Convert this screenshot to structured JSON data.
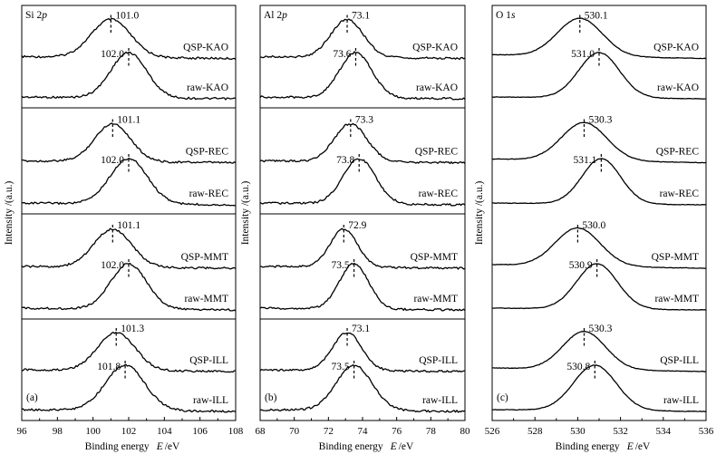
{
  "chart_data": [
    {
      "type": "line",
      "panel_label": "(a)",
      "title_element": "Si 2",
      "title_orbital": "p",
      "xlabel": "Binding energy",
      "xlabel_symbol": "E",
      "xlabel_unit": "/eV",
      "ylabel": "Intensity /(a.u.)",
      "xlim": [
        96,
        108
      ],
      "xticks": [
        "96",
        "98",
        "100",
        "102",
        "104",
        "106",
        "108"
      ],
      "grid": false,
      "series": [
        {
          "name": "QSP-KAO",
          "peak": 101.0,
          "peak_label": "101.0",
          "width": 1.1
        },
        {
          "name": "raw-KAO",
          "peak": 102.0,
          "peak_label": "102.0",
          "width": 1.0
        },
        {
          "name": "QSP-REC",
          "peak": 101.1,
          "peak_label": "101.1",
          "width": 1.0
        },
        {
          "name": "raw-REC",
          "peak": 102.0,
          "peak_label": "102.0",
          "width": 1.05
        },
        {
          "name": "QSP-MMT",
          "peak": 101.1,
          "peak_label": "101.1",
          "width": 1.05
        },
        {
          "name": "raw-MMT",
          "peak": 102.0,
          "peak_label": "102.0",
          "width": 1.0
        },
        {
          "name": "QSP-ILL",
          "peak": 101.3,
          "peak_label": "101.3",
          "width": 1.05
        },
        {
          "name": "raw-ILL",
          "peak": 101.8,
          "peak_label": "101.8",
          "width": 1.1
        }
      ]
    },
    {
      "type": "line",
      "panel_label": "(b)",
      "title_element": "Al 2",
      "title_orbital": "p",
      "xlabel": "Binding energy",
      "xlabel_symbol": "E",
      "xlabel_unit": "/eV",
      "ylabel": "Intensity /(a.u.)",
      "xlim": [
        68,
        80
      ],
      "xticks": [
        "68",
        "70",
        "72",
        "74",
        "76",
        "78",
        "80"
      ],
      "grid": false,
      "series": [
        {
          "name": "QSP-KAO",
          "peak": 73.1,
          "peak_label": "73.1",
          "width": 0.95
        },
        {
          "name": "raw-KAO",
          "peak": 73.6,
          "peak_label": "73.6",
          "width": 0.95
        },
        {
          "name": "QSP-REC",
          "peak": 73.3,
          "peak_label": "73.3",
          "width": 0.95
        },
        {
          "name": "raw-REC",
          "peak": 73.8,
          "peak_label": "73.8",
          "width": 0.95
        },
        {
          "name": "QSP-MMT",
          "peak": 72.9,
          "peak_label": "72.9",
          "width": 0.8
        },
        {
          "name": "raw-MMT",
          "peak": 73.5,
          "peak_label": "73.5",
          "width": 0.85
        },
        {
          "name": "QSP-ILL",
          "peak": 73.1,
          "peak_label": "73.1",
          "width": 0.85
        },
        {
          "name": "raw-ILL",
          "peak": 73.5,
          "peak_label": "73.5",
          "width": 1.05
        }
      ]
    },
    {
      "type": "line",
      "panel_label": "(c)",
      "title_element": "O 1",
      "title_orbital": "s",
      "xlabel": "Binding energy",
      "xlabel_symbol": "E",
      "xlabel_unit": "/eV",
      "ylabel": "Intensity /(a.u.)",
      "xlim": [
        526,
        536
      ],
      "xticks": [
        "526",
        "528",
        "530",
        "532",
        "534",
        "536"
      ],
      "grid": false,
      "series": [
        {
          "name": "QSP-KAO",
          "peak": 530.1,
          "peak_label": "530.1",
          "width": 1.05
        },
        {
          "name": "raw-KAO",
          "peak": 531.0,
          "peak_label": "531.0",
          "width": 0.95
        },
        {
          "name": "QSP-REC",
          "peak": 530.3,
          "peak_label": "530.3",
          "width": 1.05
        },
        {
          "name": "raw-REC",
          "peak": 531.1,
          "peak_label": "531.1",
          "width": 0.9
        },
        {
          "name": "QSP-MMT",
          "peak": 530.0,
          "peak_label": "530.0",
          "width": 1.05
        },
        {
          "name": "raw-MMT",
          "peak": 530.9,
          "peak_label": "530.9",
          "width": 0.95
        },
        {
          "name": "QSP-ILL",
          "peak": 530.3,
          "peak_label": "530.3",
          "width": 1.0
        },
        {
          "name": "raw-ILL",
          "peak": 530.8,
          "peak_label": "530.8",
          "width": 1.0
        }
      ]
    }
  ]
}
